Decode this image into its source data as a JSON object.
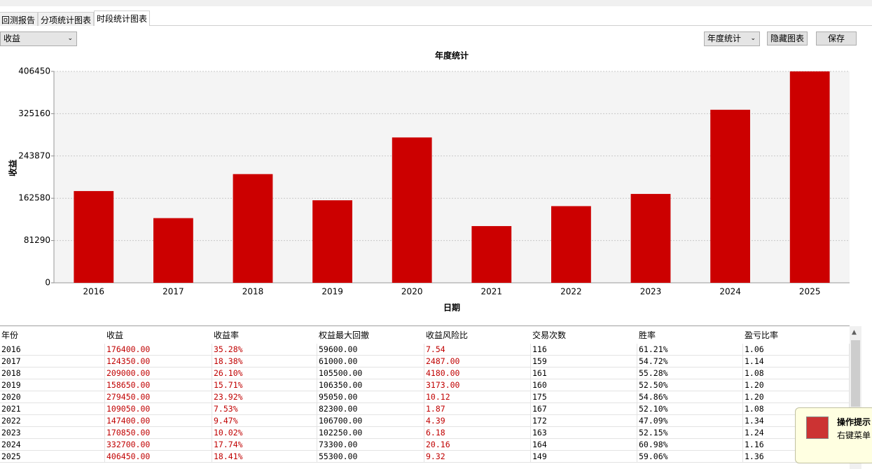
{
  "tabs": [
    "回测报告",
    "分项统计图表",
    "时段统计图表"
  ],
  "metric_select": "收益",
  "period_select": "年度统计",
  "buttons": [
    "隐藏图表",
    "保存"
  ],
  "chart_data": {
    "type": "bar",
    "title": "年度统计",
    "x_label": "日期",
    "y_label": "收益",
    "categories": [
      "2016",
      "2017",
      "2018",
      "2019",
      "2020",
      "2021",
      "2022",
      "2023",
      "2024",
      "2025"
    ],
    "values": [
      176400,
      124350,
      209000,
      158650,
      279450,
      109050,
      147400,
      170850,
      332700,
      406450
    ],
    "color": "#cc0000",
    "ylim": [
      0,
      406450
    ],
    "yticks": [
      0,
      81290,
      162580,
      243870,
      325160,
      406450
    ],
    "grid": true
  },
  "table": {
    "columns": [
      "年份",
      "收益",
      "收益率",
      "权益最大回撤",
      "收益风险比",
      "交易次数",
      "胜率",
      "盈亏比率"
    ],
    "rows": [
      [
        "2016",
        "176400.00",
        "35.28%",
        "59600.00",
        "7.54",
        "116",
        "61.21%",
        "1.06"
      ],
      [
        "2017",
        "124350.00",
        "18.38%",
        "61000.00",
        "2487.00",
        "159",
        "54.72%",
        "1.14"
      ],
      [
        "2018",
        "209000.00",
        "26.10%",
        "105500.00",
        "4180.00",
        "161",
        "55.28%",
        "1.08"
      ],
      [
        "2019",
        "158650.00",
        "15.71%",
        "106350.00",
        "3173.00",
        "160",
        "52.50%",
        "1.20"
      ],
      [
        "2020",
        "279450.00",
        "23.92%",
        "95050.00",
        "10.12",
        "175",
        "54.86%",
        "1.20"
      ],
      [
        "2021",
        "109050.00",
        "7.53%",
        "82300.00",
        "1.87",
        "167",
        "52.10%",
        "1.08"
      ],
      [
        "2022",
        "147400.00",
        "9.47%",
        "106700.00",
        "4.39",
        "172",
        "47.09%",
        "1.34"
      ],
      [
        "2023",
        "170850.00",
        "10.02%",
        "102250.00",
        "6.18",
        "163",
        "52.15%",
        "1.24"
      ],
      [
        "2024",
        "332700.00",
        "17.74%",
        "73300.00",
        "20.16",
        "164",
        "60.98%",
        "1.16"
      ],
      [
        "2025",
        "406450.00",
        "18.41%",
        "55300.00",
        "9.32",
        "149",
        "59.06%",
        "1.36"
      ]
    ]
  },
  "tooltip": {
    "title": "操作提示",
    "text": "右键菜单"
  }
}
